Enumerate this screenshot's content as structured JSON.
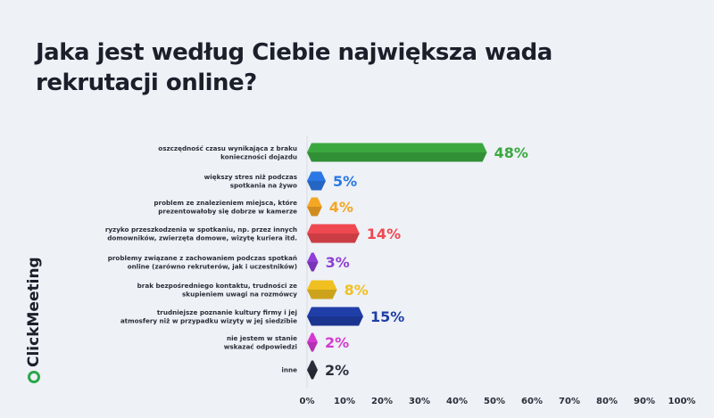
{
  "title": "Jaka jest według Ciebie największa wada rekrutacji online?",
  "logo": "ClickMeeting",
  "chart_data": {
    "type": "bar",
    "orientation": "horizontal",
    "title": "Jaka jest według Ciebie największa wada rekrutacji online?",
    "categories": [
      [
        "oszczędność czasu wynikająca z braku",
        "konieczności dojazdu"
      ],
      [
        "większy stres niż podczas",
        "spotkania na żywo"
      ],
      [
        "problem ze znalezieniem miejsca, które",
        "prezentowałoby się dobrze w kamerze"
      ],
      [
        "ryzyko przeszkodzenia w spotkaniu, np. przez innych",
        "domowników, zwierzęta domowe, wizytę kuriera itd."
      ],
      [
        "problemy związane z zachowaniem podczas spotkań",
        "online (zarówno rekruterów, jak i uczestników)"
      ],
      [
        "brak bezpośredniego kontaktu, trudności ze",
        "skupieniem uwagi na rozmówcy"
      ],
      [
        "trudniejsze poznanie kultury firmy i jej",
        "atmosfery niż w przypadku wizyty w jej siedzibie"
      ],
      [
        "nie jestem w stanie",
        "wskazać odpowiedzi"
      ],
      [
        "inne"
      ]
    ],
    "values": [
      48,
      5,
      4,
      14,
      3,
      8,
      15,
      2,
      2
    ],
    "value_labels": [
      "48%",
      "5%",
      "4%",
      "14%",
      "3%",
      "8%",
      "15%",
      "2%",
      "2%"
    ],
    "colors": [
      "#3aa83f",
      "#2b78e4",
      "#f5a623",
      "#ef4850",
      "#8e3fd6",
      "#f0c020",
      "#1f3ea8",
      "#d43ad0",
      "#2a2e3a"
    ],
    "xlim": [
      0,
      100
    ],
    "xticks": [
      "0%",
      "10%",
      "20%",
      "30%",
      "40%",
      "50%",
      "60%",
      "70%",
      "80%",
      "90%",
      "100%"
    ],
    "grid": false
  }
}
